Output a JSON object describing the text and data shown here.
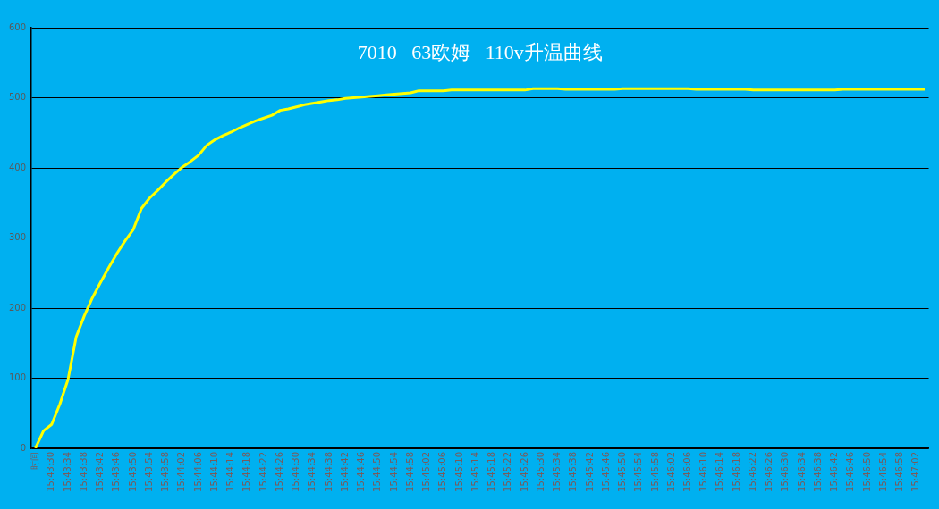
{
  "chart_data": {
    "type": "line",
    "title": "7010   63欧姆   110v升温曲线",
    "categories": [
      "时间",
      null,
      "15:43:30",
      null,
      "15:43:34",
      null,
      "15:43:38",
      null,
      "15:43:42",
      null,
      "15:43:46",
      null,
      "15:43:50",
      null,
      "15:43:54",
      null,
      "15:43:58",
      null,
      "15:44:02",
      null,
      "15:44:06",
      null,
      "15:44:10",
      null,
      "15:44:14",
      null,
      "15:44:18",
      null,
      "15:44:22",
      null,
      "15:44:26",
      null,
      "15:44:30",
      null,
      "15:44:34",
      null,
      "15:44:38",
      null,
      "15:44:42",
      null,
      "15:44:46",
      null,
      "15:44:50",
      null,
      "15:44:54",
      null,
      "15:44:58",
      null,
      "15:45:02",
      null,
      "15:45:06",
      null,
      "15:45:10",
      null,
      "15:45:14",
      null,
      "15:45:18",
      null,
      "15:45:22",
      null,
      "15:45:26",
      null,
      "15:45:30",
      null,
      "15:45:34",
      null,
      "15:45:38",
      null,
      "15:45:42",
      null,
      "15:45:46",
      null,
      "15:45:50",
      null,
      "15:45:54",
      null,
      "15:45:58",
      null,
      "15:46:02",
      null,
      "15:46:06",
      null,
      "15:46:10",
      null,
      "15:46:14",
      null,
      "15:46:18",
      null,
      "15:46:22",
      null,
      "15:46:26",
      null,
      "15:46:30",
      null,
      "15:46:34",
      null,
      "15:46:38",
      null,
      "15:46:42",
      null,
      "15:46:46",
      null,
      "15:46:50",
      null,
      "15:46:54",
      null,
      "15:46:58",
      null,
      "15:47:02",
      null
    ],
    "series": [
      {
        "color": "#ffff00",
        "values": [
          0,
          25,
          34,
          63,
          98,
          159,
          189,
          215,
          237,
          258,
          278,
          296,
          312,
          342,
          357,
          368,
          380,
          391,
          401,
          409,
          418,
          432,
          440,
          446,
          451,
          457,
          462,
          467,
          471,
          475,
          482,
          484,
          487,
          490,
          492,
          494,
          496,
          497,
          499,
          500,
          501,
          502,
          503,
          504,
          505,
          506,
          507,
          510,
          510,
          510,
          510,
          511,
          511,
          511,
          511,
          511,
          511,
          511,
          511,
          511,
          511,
          513,
          513,
          513,
          513,
          512,
          512,
          512,
          512,
          512,
          512,
          512,
          513,
          513,
          513,
          513,
          513,
          513,
          513,
          513,
          513,
          512,
          512,
          512,
          512,
          512,
          512,
          512,
          511,
          511,
          511,
          511,
          511,
          511,
          511,
          511,
          511,
          511,
          511,
          512,
          512,
          512,
          512,
          512,
          512,
          512,
          512,
          512,
          512,
          512
        ]
      }
    ],
    "ylim": [
      0,
      600
    ],
    "yticks": [
      0,
      100,
      200,
      300,
      400,
      500,
      600
    ],
    "grid": "y",
    "legend": false,
    "marker": "none",
    "line_style": "solid"
  }
}
